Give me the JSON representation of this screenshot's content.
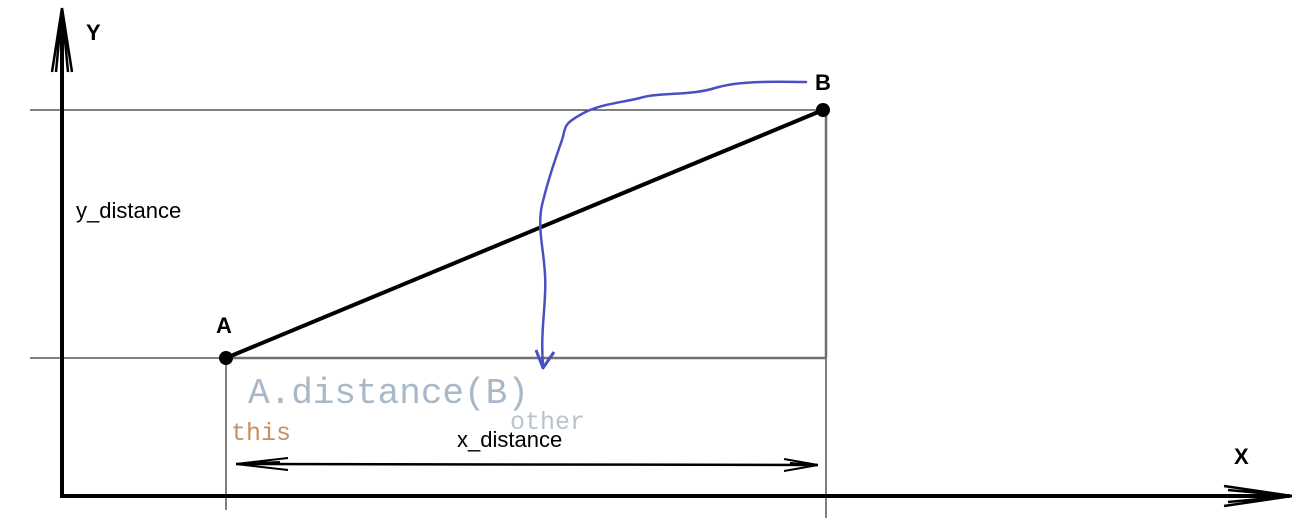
{
  "axes": {
    "x_label": "X",
    "y_label": "Y"
  },
  "points": {
    "a_label": "A",
    "b_label": "B"
  },
  "distances": {
    "x_label": "x_distance",
    "y_label": "y_distance"
  },
  "code": {
    "expression": "A.distance(B)",
    "this_label": "this",
    "other_label": "other"
  },
  "colors": {
    "line": "#000000",
    "guide": "#000000",
    "projection": "#707070",
    "annotation_arrow": "#4a4fc4",
    "this_text": "#c89060",
    "other_text": "#b8c4d0",
    "expression_text": "#a8b8c8"
  }
}
